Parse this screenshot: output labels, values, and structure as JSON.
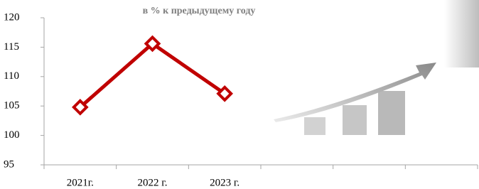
{
  "chart_data": {
    "type": "line",
    "title": "в % к предыдущему году",
    "categories": [
      "2021г.",
      "2022 г.",
      "2023 г.",
      null,
      null,
      null
    ],
    "series": [
      {
        "values": [
          104.8,
          115.6,
          107.1,
          null,
          null,
          null
        ],
        "color": "#c00000"
      }
    ],
    "ylim": [
      95,
      120
    ],
    "yticks": [
      95,
      100,
      105,
      110,
      115,
      120
    ]
  }
}
